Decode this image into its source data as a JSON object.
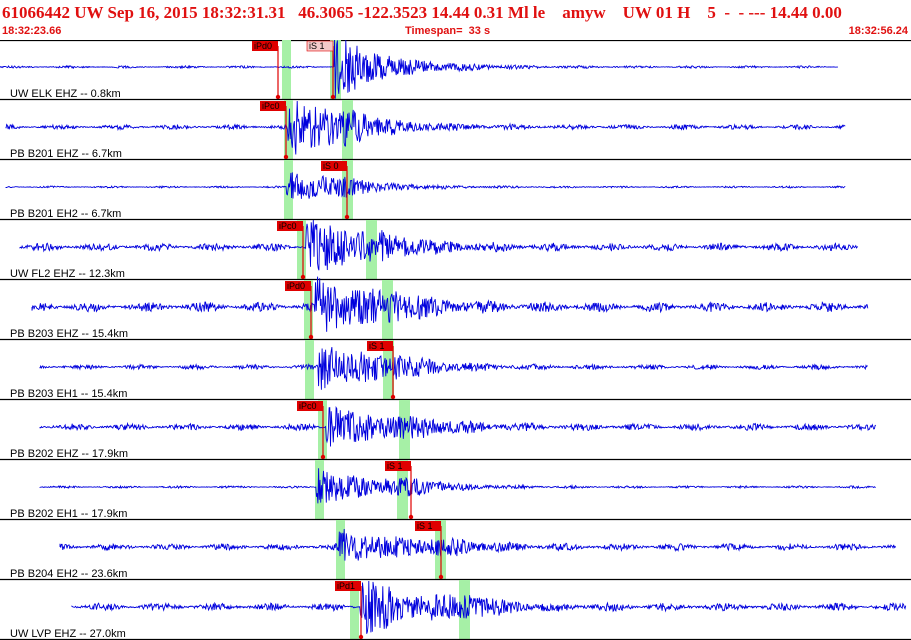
{
  "header": {
    "title": "61066442 UW Sep 16, 2015 18:32:31.31   46.3065 -122.3523 14.44 0.31 Ml le    amyw    UW 01 H    5  -  - --- 14.44 0.00",
    "start_time": "18:32:23.66",
    "timespan": "Timespan=  33 s",
    "end_time": "18:32:56.24"
  },
  "colors": {
    "header_text": "#e01010",
    "trace": "#0000dd",
    "pick_marker": "#e00000",
    "theory_window": "#a6f0a6",
    "separator": "#000000"
  },
  "channels": [
    {
      "label": "UW ELK EHZ -- 0.8km",
      "picks": [
        {
          "tag": "iPd0",
          "style": "solid"
        },
        {
          "tag": "iS 1",
          "style": "pale"
        }
      ]
    },
    {
      "label": "PB B201 EHZ -- 6.7km",
      "picks": [
        {
          "tag": "iPc0",
          "style": "solid"
        }
      ]
    },
    {
      "label": "PB B201 EH2 -- 6.7km",
      "picks": [
        {
          "tag": "iS 0",
          "style": "solid"
        }
      ]
    },
    {
      "label": "UW FL2 EHZ -- 12.3km",
      "picks": [
        {
          "tag": "iPc0",
          "style": "solid"
        }
      ]
    },
    {
      "label": "PB B203 EHZ -- 15.4km",
      "picks": [
        {
          "tag": "iPd0",
          "style": "solid"
        }
      ]
    },
    {
      "label": "PB B203 EH1 -- 15.4km",
      "picks": [
        {
          "tag": "iS 1",
          "style": "solid"
        }
      ]
    },
    {
      "label": "PB B202 EHZ -- 17.9km",
      "picks": [
        {
          "tag": "iPc0",
          "style": "solid"
        }
      ]
    },
    {
      "label": "PB B202 EH1 -- 17.9km",
      "picks": [
        {
          "tag": "iS 1",
          "style": "solid"
        }
      ]
    },
    {
      "label": "PB B204 EH2 -- 23.6km",
      "picks": [
        {
          "tag": "iS 1",
          "style": "solid"
        }
      ]
    },
    {
      "label": "UW LVP EHZ -- 27.0km",
      "picks": [
        {
          "tag": "iPd1",
          "style": "solid"
        }
      ]
    }
  ]
}
